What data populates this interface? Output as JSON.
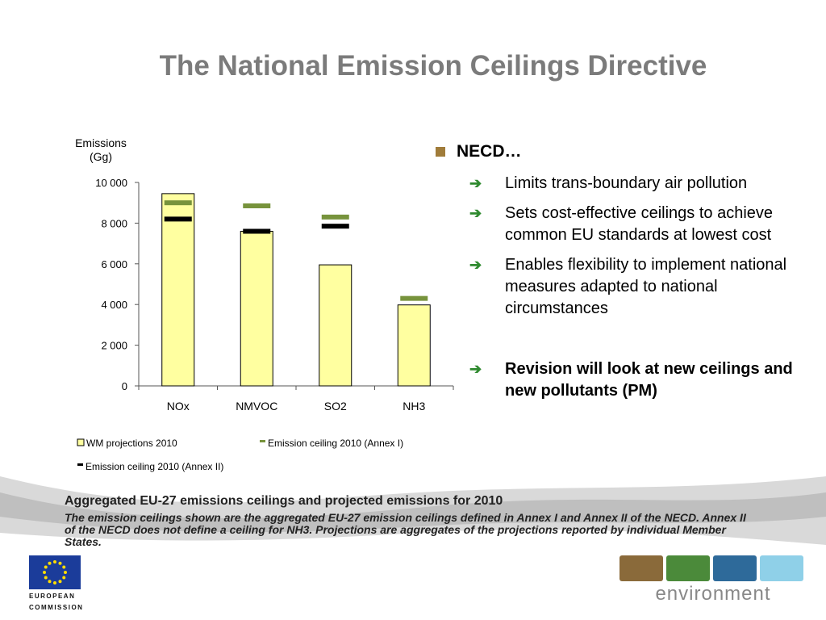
{
  "slide_title": "The National Emission Ceilings Directive",
  "bullets": {
    "heading": "NECD…",
    "items": [
      "Limits trans-boundary air pollution",
      "Sets cost-effective ceilings to achieve common EU standards at lowest cost",
      "Enables flexibility to implement national measures adapted to national circumstances"
    ],
    "bold_item": "Revision will look at new ceilings and new pollutants (PM)"
  },
  "caption": {
    "title": "Aggregated EU-27 emissions ceilings and projected emissions for 2010",
    "body": "The emission ceilings shown are the aggregated EU-27 emission ceilings defined in Annex I and Annex II of the NECD. Annex II of the NECD does not define a ceiling for NH3. Projections are aggregates of the projections reported by individual Member States."
  },
  "logos": {
    "eu_line1": "EUROPEAN",
    "eu_line2": "COMMISSION",
    "environment": "environment"
  },
  "colors": {
    "bar_fill": "#ffffa0",
    "annex1": "#77933c",
    "annex2": "#000000",
    "title": "#7b7b7b",
    "bullet_square": "#a07c3a",
    "arrow": "#2f8a2f"
  },
  "chart_data": {
    "type": "bar",
    "ylabel": "Emissions\n(Gg)",
    "categories": [
      "NOx",
      "NMVOC",
      "SO2",
      "NH3"
    ],
    "ylim": [
      0,
      10000
    ],
    "yticks": [
      0,
      2000,
      4000,
      6000,
      8000,
      10000
    ],
    "ytick_labels": [
      "0",
      "2 000",
      "4 000",
      "6 000",
      "8 000",
      "10 000"
    ],
    "series": [
      {
        "name": "WM projections  2010",
        "kind": "bar",
        "values": [
          9450,
          7600,
          5950,
          3980
        ]
      },
      {
        "name": "Emission ceiling 2010 (Annex I)",
        "kind": "marker",
        "values": [
          9000,
          8850,
          8300,
          4300
        ]
      },
      {
        "name": "Emission ceiling 2010 (Annex II)",
        "kind": "marker",
        "values": [
          8200,
          7600,
          7850,
          null
        ]
      }
    ],
    "legend_position": "bottom"
  }
}
